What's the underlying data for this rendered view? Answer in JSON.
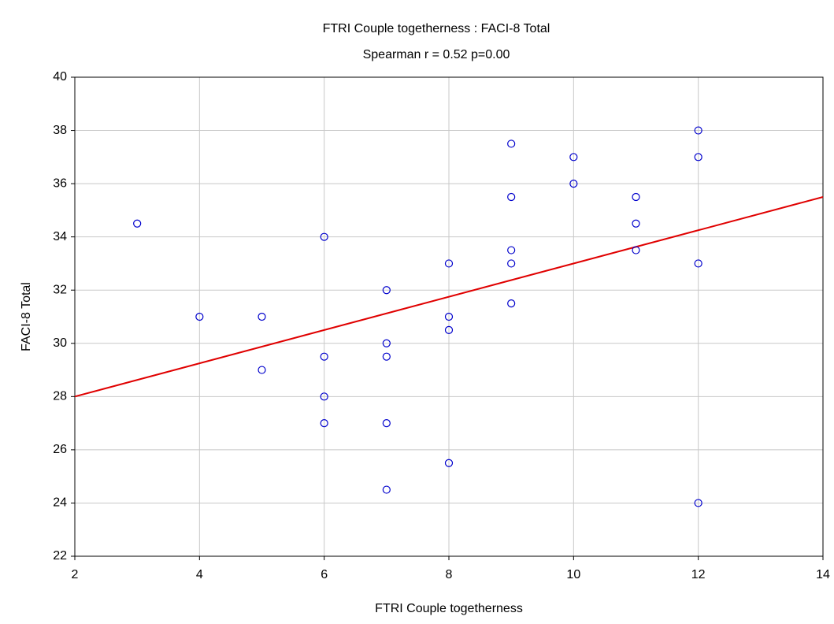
{
  "chart_data": {
    "type": "scatter",
    "title": "FTRI Couple togetherness : FACI-8 Total",
    "subtitle": "Spearman r = 0.52 p=0.00",
    "xlabel": "FTRI Couple togetherness",
    "ylabel": "FACI-8 Total",
    "x": [
      3,
      4,
      5,
      5,
      6,
      6,
      6,
      6,
      7,
      7,
      7,
      7,
      7,
      8,
      8,
      8,
      8,
      9,
      9,
      9,
      9,
      9,
      10,
      10,
      11,
      11,
      11,
      12,
      12,
      12,
      12
    ],
    "values": [
      34.5,
      31,
      31,
      29,
      34,
      29.5,
      28,
      27,
      32,
      30,
      29.5,
      27,
      24.5,
      33,
      31,
      30.5,
      25.5,
      37.5,
      35.5,
      33.5,
      33,
      31.5,
      37,
      36,
      35.5,
      34.5,
      33.5,
      38,
      37,
      33,
      24
    ],
    "color": "#0000cc",
    "fit_line": {
      "x": [
        2,
        14
      ],
      "values": [
        28,
        35.5
      ],
      "color": "#e00000"
    },
    "xlim": [
      2,
      14
    ],
    "xticks": [
      2,
      4,
      6,
      8,
      10,
      12,
      14
    ],
    "ylim": [
      22,
      40
    ],
    "yticks": [
      22,
      24,
      26,
      28,
      30,
      32,
      34,
      36,
      38,
      40
    ],
    "grid": true
  }
}
